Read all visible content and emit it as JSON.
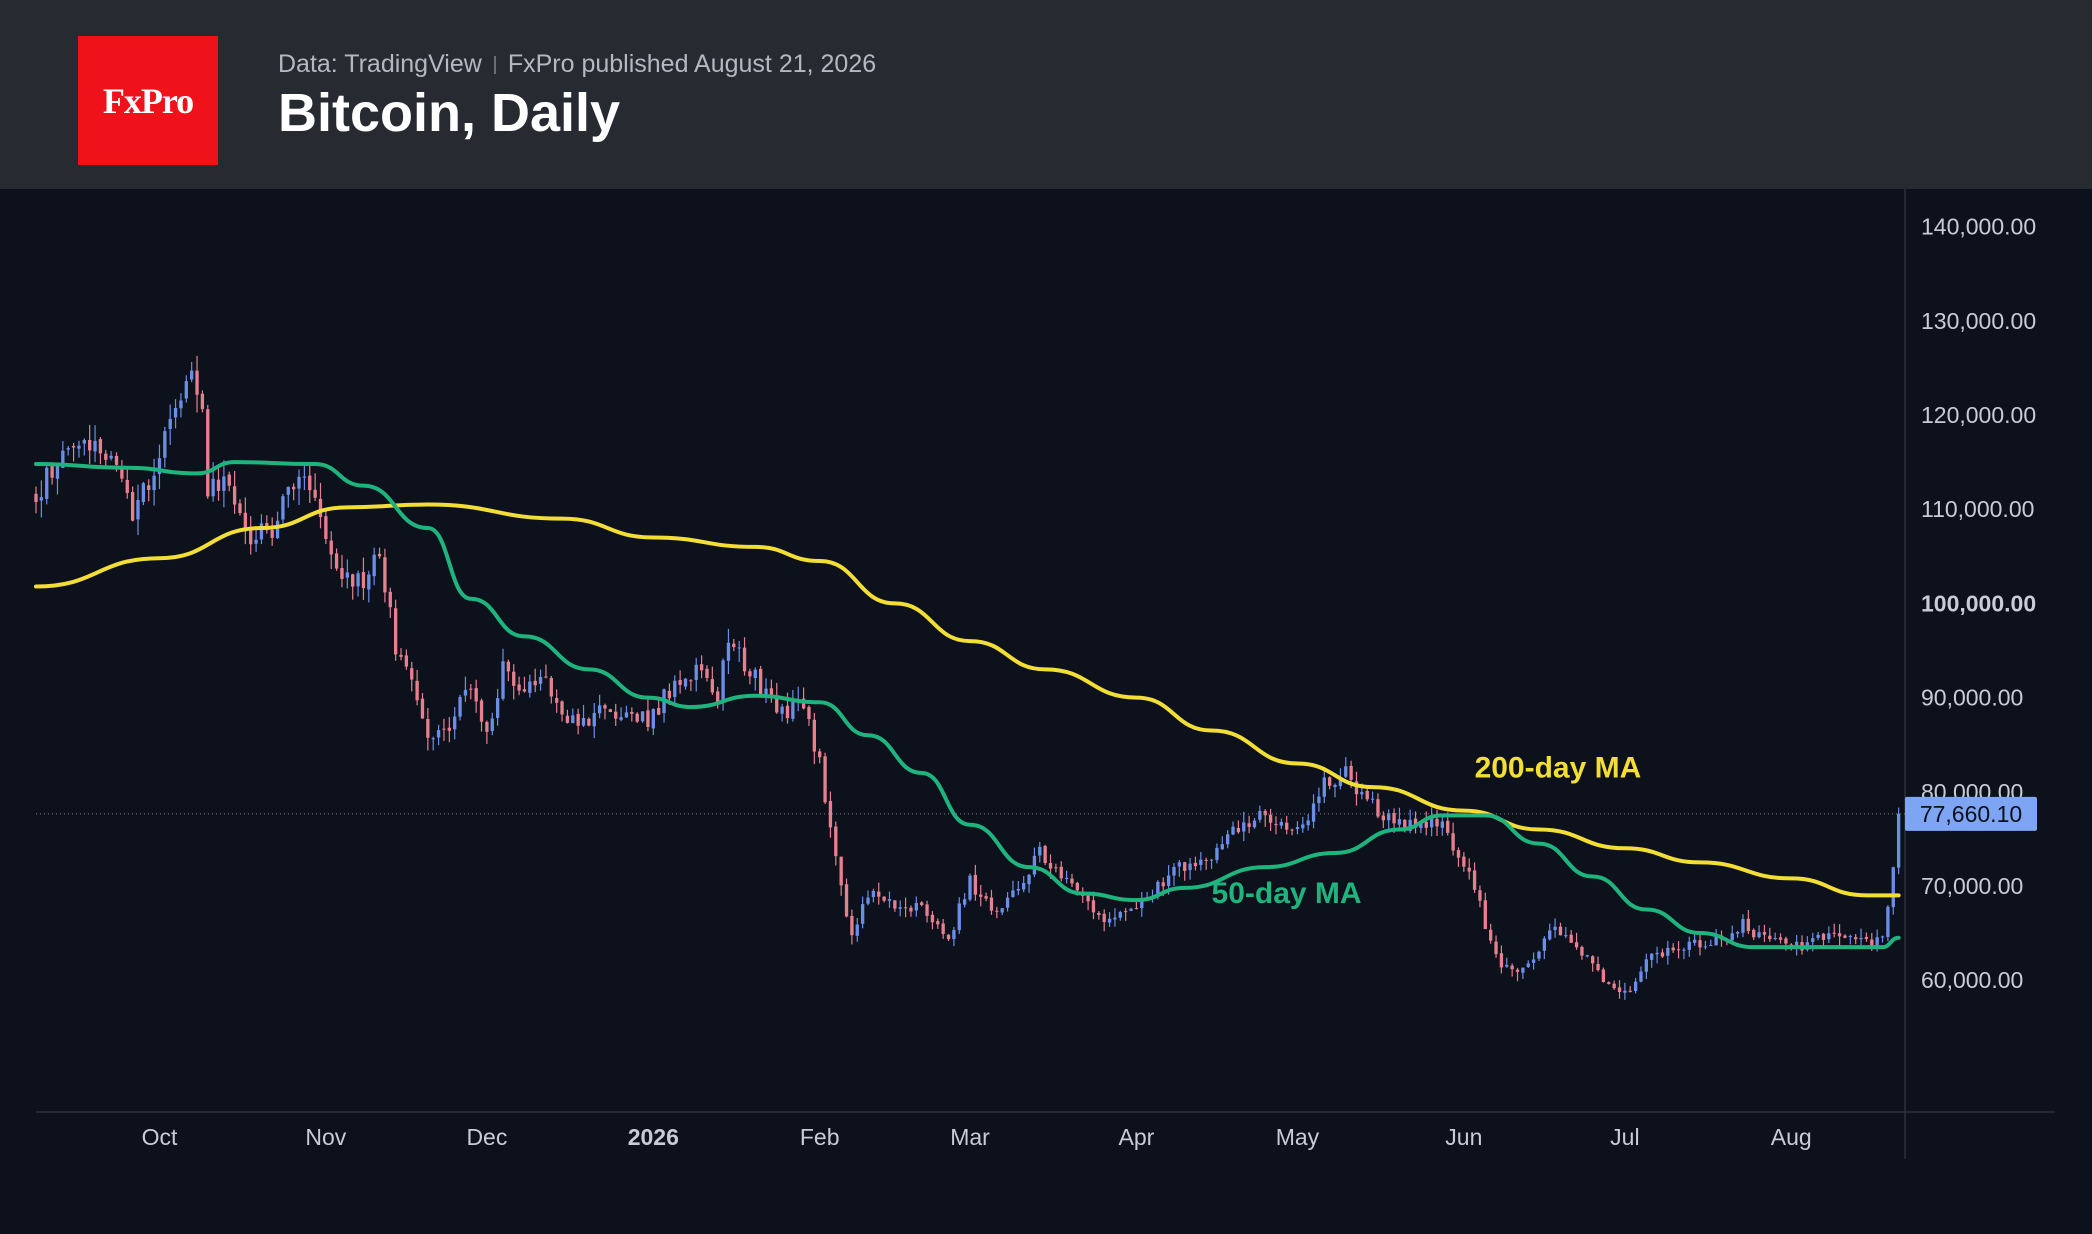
{
  "header": {
    "logo_text": "FxPro",
    "source": "Data: TradingView",
    "published": "FxPro published August 21, 2026",
    "title": "Bitcoin, Daily"
  },
  "colors": {
    "background": "#0c111b",
    "header_bg": "#282a32",
    "logo_bg": "#f0121a",
    "up_candle": "#6b8fe8",
    "down_candle": "#e6808f",
    "ma200": "#f3de35",
    "ma50": "#1fb47e",
    "axis_text": "#c8ccd6",
    "last_price_bg": "#7ea4f4"
  },
  "chart_data": {
    "type": "candlestick",
    "title": "Bitcoin, Daily",
    "y_axis": {
      "range": [
        46000,
        144000
      ],
      "ticks": [
        "140,000.00",
        "130,000.00",
        "120,000.00",
        "110,000.00",
        "100,000.00",
        "90,000.00",
        "80,000.00",
        "70,000.00",
        "60,000.00"
      ],
      "tick_values": [
        140000,
        130000,
        120000,
        110000,
        100000,
        90000,
        80000,
        70000,
        60000
      ],
      "bold_tick": "100,000.00",
      "position": "right"
    },
    "x_axis": {
      "range": [
        "2025-09-08",
        "2026-08-22"
      ],
      "ticks": [
        {
          "label": "Oct",
          "date": "2025-10-01",
          "bold": false
        },
        {
          "label": "Nov",
          "date": "2025-11-01",
          "bold": false
        },
        {
          "label": "Dec",
          "date": "2025-12-01",
          "bold": false
        },
        {
          "label": "2026",
          "date": "2026-01-01",
          "bold": true
        },
        {
          "label": "Feb",
          "date": "2026-02-01",
          "bold": false
        },
        {
          "label": "Mar",
          "date": "2026-03-01",
          "bold": false
        },
        {
          "label": "Apr",
          "date": "2026-04-01",
          "bold": false
        },
        {
          "label": "May",
          "date": "2026-05-01",
          "bold": false
        },
        {
          "label": "Jun",
          "date": "2026-06-01",
          "bold": false
        },
        {
          "label": "Jul",
          "date": "2026-07-01",
          "bold": false
        },
        {
          "label": "Aug",
          "date": "2026-08-01",
          "bold": false
        }
      ]
    },
    "price_path": [
      [
        "2025-09-08",
        111500
      ],
      [
        "2025-09-13",
        116000
      ],
      [
        "2025-09-21",
        116500
      ],
      [
        "2025-09-26",
        109500
      ],
      [
        "2025-09-30",
        114000
      ],
      [
        "2025-10-06",
        124500
      ],
      [
        "2025-10-09",
        121500
      ],
      [
        "2025-10-10",
        112000
      ],
      [
        "2025-10-14",
        113000
      ],
      [
        "2025-10-17",
        106500
      ],
      [
        "2025-10-22",
        108000
      ],
      [
        "2025-10-27",
        114500
      ],
      [
        "2025-10-31",
        109500
      ],
      [
        "2025-11-04",
        103000
      ],
      [
        "2025-11-08",
        102500
      ],
      [
        "2025-11-11",
        105500
      ],
      [
        "2025-11-14",
        95500
      ],
      [
        "2025-11-21",
        85000
      ],
      [
        "2025-11-25",
        88000
      ],
      [
        "2025-11-28",
        91500
      ],
      [
        "2025-12-01",
        86500
      ],
      [
        "2025-12-04",
        93000
      ],
      [
        "2025-12-08",
        90000
      ],
      [
        "2025-12-11",
        92500
      ],
      [
        "2025-12-18",
        86500
      ],
      [
        "2025-12-22",
        89000
      ],
      [
        "2025-12-31",
        87500
      ],
      [
        "2026-01-05",
        91500
      ],
      [
        "2026-01-09",
        92500
      ],
      [
        "2026-01-13",
        90500
      ],
      [
        "2026-01-15",
        96500
      ],
      [
        "2026-01-20",
        92000
      ],
      [
        "2026-01-25",
        88500
      ],
      [
        "2026-01-29",
        89000
      ],
      [
        "2026-02-01",
        83000
      ],
      [
        "2026-02-05",
        70000
      ],
      [
        "2026-02-07",
        64500
      ],
      [
        "2026-02-10",
        69500
      ],
      [
        "2026-02-15",
        68000
      ],
      [
        "2026-02-20",
        67500
      ],
      [
        "2026-02-25",
        64500
      ],
      [
        "2026-03-01",
        70500
      ],
      [
        "2026-03-05",
        67500
      ],
      [
        "2026-03-10",
        69500
      ],
      [
        "2026-03-14",
        73500
      ],
      [
        "2026-03-18",
        71000
      ],
      [
        "2026-03-24",
        67000
      ],
      [
        "2026-03-29",
        66500
      ],
      [
        "2026-04-02",
        68500
      ],
      [
        "2026-04-08",
        71500
      ],
      [
        "2026-04-14",
        73000
      ],
      [
        "2026-04-20",
        76500
      ],
      [
        "2026-04-26",
        77500
      ],
      [
        "2026-05-01",
        75500
      ],
      [
        "2026-05-06",
        81000
      ],
      [
        "2026-05-10",
        82000
      ],
      [
        "2026-05-14",
        79000
      ],
      [
        "2026-05-20",
        76500
      ],
      [
        "2026-05-27",
        77000
      ],
      [
        "2026-06-02",
        72000
      ],
      [
        "2026-06-06",
        64000
      ],
      [
        "2026-06-09",
        61000
      ],
      [
        "2026-06-13",
        62000
      ],
      [
        "2026-06-18",
        66000
      ],
      [
        "2026-06-24",
        62000
      ],
      [
        "2026-06-28",
        59000
      ],
      [
        "2026-07-02",
        59000
      ],
      [
        "2026-07-06",
        62500
      ],
      [
        "2026-07-13",
        64000
      ],
      [
        "2026-07-20",
        64000
      ],
      [
        "2026-07-23",
        66000
      ],
      [
        "2026-07-28",
        64000
      ],
      [
        "2026-08-03",
        63500
      ],
      [
        "2026-08-10",
        65000
      ],
      [
        "2026-08-16",
        63500
      ],
      [
        "2026-08-18",
        64500
      ],
      [
        "2026-08-19",
        68000
      ],
      [
        "2026-08-20",
        72500
      ],
      [
        "2026-08-21",
        77660
      ]
    ],
    "series": [
      {
        "name": "200-day MA",
        "color": "#f3de35",
        "points": [
          [
            "2025-09-08",
            101800
          ],
          [
            "2025-10-01",
            104800
          ],
          [
            "2025-10-20",
            108000
          ],
          [
            "2025-11-05",
            110200
          ],
          [
            "2025-11-20",
            110500
          ],
          [
            "2025-12-15",
            109000
          ],
          [
            "2026-01-01",
            107000
          ],
          [
            "2026-01-20",
            106000
          ],
          [
            "2026-02-01",
            104500
          ],
          [
            "2026-02-15",
            100000
          ],
          [
            "2026-03-01",
            96000
          ],
          [
            "2026-03-15",
            93000
          ],
          [
            "2026-04-01",
            90000
          ],
          [
            "2026-04-15",
            86500
          ],
          [
            "2026-05-01",
            83000
          ],
          [
            "2026-05-15",
            80500
          ],
          [
            "2026-06-01",
            78000
          ],
          [
            "2026-06-15",
            76000
          ],
          [
            "2026-07-01",
            74000
          ],
          [
            "2026-07-15",
            72500
          ],
          [
            "2026-08-01",
            70800
          ],
          [
            "2026-08-15",
            69000
          ],
          [
            "2026-08-21",
            69000
          ]
        ]
      },
      {
        "name": "50-day MA",
        "color": "#1fb47e",
        "points": [
          [
            "2025-09-08",
            114800
          ],
          [
            "2025-09-25",
            114400
          ],
          [
            "2025-10-08",
            113800
          ],
          [
            "2025-10-15",
            115000
          ],
          [
            "2025-10-30",
            114800
          ],
          [
            "2025-11-08",
            112500
          ],
          [
            "2025-11-20",
            108000
          ],
          [
            "2025-11-28",
            100500
          ],
          [
            "2025-12-08",
            96500
          ],
          [
            "2025-12-20",
            93000
          ],
          [
            "2025-12-31",
            90000
          ],
          [
            "2026-01-08",
            89000
          ],
          [
            "2026-01-20",
            90200
          ],
          [
            "2026-02-01",
            89500
          ],
          [
            "2026-02-10",
            86000
          ],
          [
            "2026-02-20",
            82000
          ],
          [
            "2026-03-01",
            76500
          ],
          [
            "2026-03-12",
            72000
          ],
          [
            "2026-03-22",
            69200
          ],
          [
            "2026-04-01",
            68500
          ],
          [
            "2026-04-10",
            69800
          ],
          [
            "2026-04-25",
            72000
          ],
          [
            "2026-05-08",
            73500
          ],
          [
            "2026-05-20",
            76000
          ],
          [
            "2026-05-28",
            77500
          ],
          [
            "2026-06-05",
            77500
          ],
          [
            "2026-06-15",
            74500
          ],
          [
            "2026-06-25",
            71000
          ],
          [
            "2026-07-05",
            67500
          ],
          [
            "2026-07-15",
            65000
          ],
          [
            "2026-07-25",
            63500
          ],
          [
            "2026-08-05",
            63500
          ],
          [
            "2026-08-18",
            63500
          ],
          [
            "2026-08-21",
            64500
          ]
        ]
      }
    ],
    "annotations": [
      {
        "text": "200-day MA",
        "color": "#f3de35",
        "date": "2026-06-03",
        "value": 81500
      },
      {
        "text": "50-day MA",
        "color": "#1fb47e",
        "date": "2026-04-15",
        "value": 68200
      }
    ],
    "last_price": {
      "value": 77660.1,
      "label": "77,660.10"
    },
    "grid": false,
    "legend": "none"
  }
}
